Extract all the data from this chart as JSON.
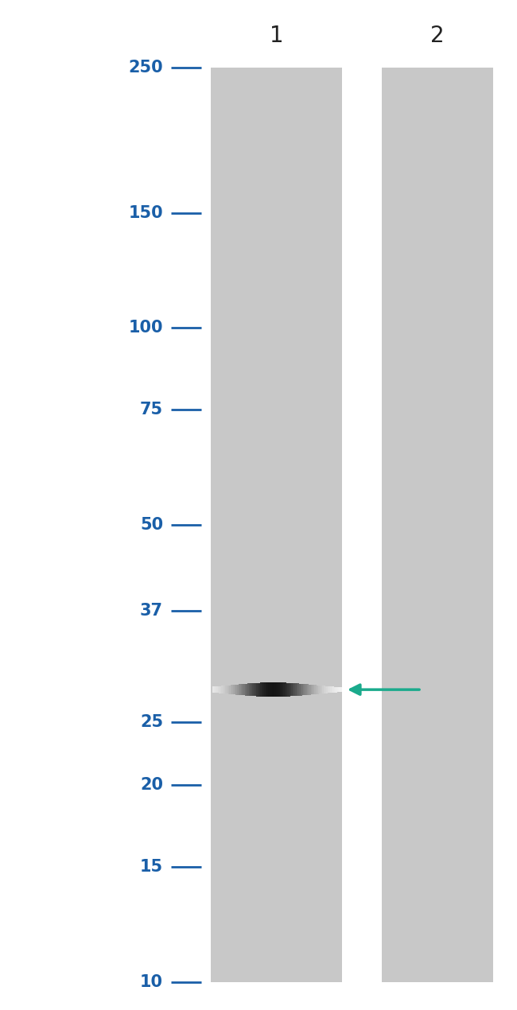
{
  "background_color": "#ffffff",
  "gel_background": "#c8c8c8",
  "figure_width": 6.5,
  "figure_height": 12.7,
  "lane_labels": [
    "1",
    "2"
  ],
  "lane_label_fontsize": 20,
  "lane_label_color": "#222222",
  "mw_labels": [
    "250",
    "150",
    "100",
    "75",
    "50",
    "37",
    "25",
    "20",
    "15",
    "10"
  ],
  "mw_values": [
    250,
    150,
    100,
    75,
    50,
    37,
    25,
    20,
    15,
    10
  ],
  "mw_label_fontsize": 15,
  "mw_label_color": "#1a5fa8",
  "arrow_color": "#1aaa8c",
  "band_mw": 28,
  "log_scale_min": 10,
  "log_scale_max": 250
}
